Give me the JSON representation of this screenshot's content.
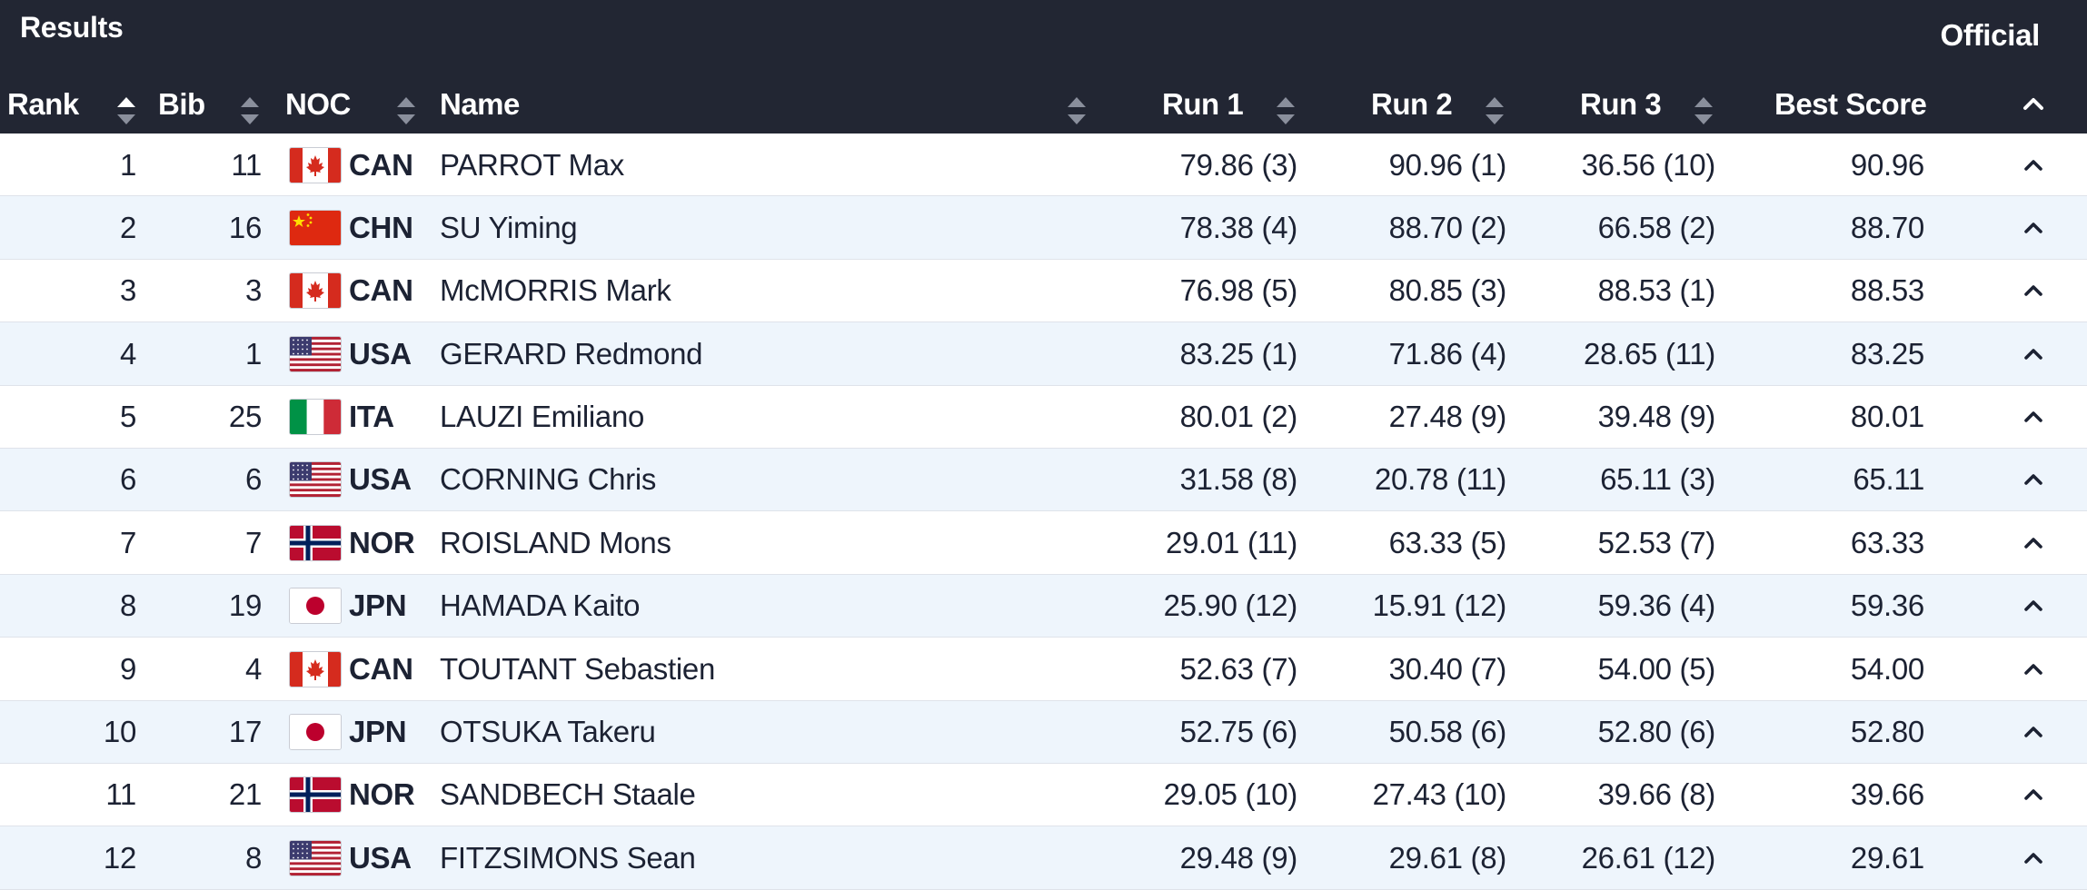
{
  "header": {
    "title": "Results",
    "status": "Official",
    "columns": {
      "rank": "Rank",
      "bib": "Bib",
      "noc": "NOC",
      "name": "Name",
      "run1": "Run 1",
      "run2": "Run 2",
      "run3": "Run 3",
      "best": "Best Score"
    }
  },
  "colors": {
    "header_bg": "#222633",
    "row_alt_bg": "#eef5fc",
    "row_bg": "#ffffff",
    "sort_active": "#ffffff",
    "sort_inactive": "#8a8f9c"
  },
  "rows": [
    {
      "rank": "1",
      "bib": "11",
      "noc": "CAN",
      "flag": "canada-flag-icon",
      "name": "PARROT Max",
      "run1": "79.86 (3)",
      "run2": "90.96 (1)",
      "run3": "36.56 (10)",
      "best": "90.96"
    },
    {
      "rank": "2",
      "bib": "16",
      "noc": "CHN",
      "flag": "china-flag-icon",
      "name": "SU Yiming",
      "run1": "78.38 (4)",
      "run2": "88.70 (2)",
      "run3": "66.58 (2)",
      "best": "88.70"
    },
    {
      "rank": "3",
      "bib": "3",
      "noc": "CAN",
      "flag": "canada-flag-icon",
      "name": "McMORRIS Mark",
      "run1": "76.98 (5)",
      "run2": "80.85 (3)",
      "run3": "88.53 (1)",
      "best": "88.53"
    },
    {
      "rank": "4",
      "bib": "1",
      "noc": "USA",
      "flag": "usa-flag-icon",
      "name": "GERARD Redmond",
      "run1": "83.25 (1)",
      "run2": "71.86 (4)",
      "run3": "28.65 (11)",
      "best": "83.25"
    },
    {
      "rank": "5",
      "bib": "25",
      "noc": "ITA",
      "flag": "italy-flag-icon",
      "name": "LAUZI Emiliano",
      "run1": "80.01 (2)",
      "run2": "27.48 (9)",
      "run3": "39.48 (9)",
      "best": "80.01"
    },
    {
      "rank": "6",
      "bib": "6",
      "noc": "USA",
      "flag": "usa-flag-icon",
      "name": "CORNING Chris",
      "run1": "31.58 (8)",
      "run2": "20.78 (11)",
      "run3": "65.11 (3)",
      "best": "65.11"
    },
    {
      "rank": "7",
      "bib": "7",
      "noc": "NOR",
      "flag": "norway-flag-icon",
      "name": "ROISLAND Mons",
      "run1": "29.01 (11)",
      "run2": "63.33 (5)",
      "run3": "52.53 (7)",
      "best": "63.33"
    },
    {
      "rank": "8",
      "bib": "19",
      "noc": "JPN",
      "flag": "japan-flag-icon",
      "name": "HAMADA Kaito",
      "run1": "25.90 (12)",
      "run2": "15.91 (12)",
      "run3": "59.36 (4)",
      "best": "59.36"
    },
    {
      "rank": "9",
      "bib": "4",
      "noc": "CAN",
      "flag": "canada-flag-icon",
      "name": "TOUTANT Sebastien",
      "run1": "52.63 (7)",
      "run2": "30.40 (7)",
      "run3": "54.00 (5)",
      "best": "54.00"
    },
    {
      "rank": "10",
      "bib": "17",
      "noc": "JPN",
      "flag": "japan-flag-icon",
      "name": "OTSUKA Takeru",
      "run1": "52.75 (6)",
      "run2": "50.58 (6)",
      "run3": "52.80 (6)",
      "best": "52.80"
    },
    {
      "rank": "11",
      "bib": "21",
      "noc": "NOR",
      "flag": "norway-flag-icon",
      "name": "SANDBECH Staale",
      "run1": "29.05 (10)",
      "run2": "27.43 (10)",
      "run3": "39.66 (8)",
      "best": "39.66"
    },
    {
      "rank": "12",
      "bib": "8",
      "noc": "USA",
      "flag": "usa-flag-icon",
      "name": "FITZSIMONS Sean",
      "run1": "29.48 (9)",
      "run2": "29.61 (8)",
      "run3": "26.61 (12)",
      "best": "29.61"
    }
  ]
}
